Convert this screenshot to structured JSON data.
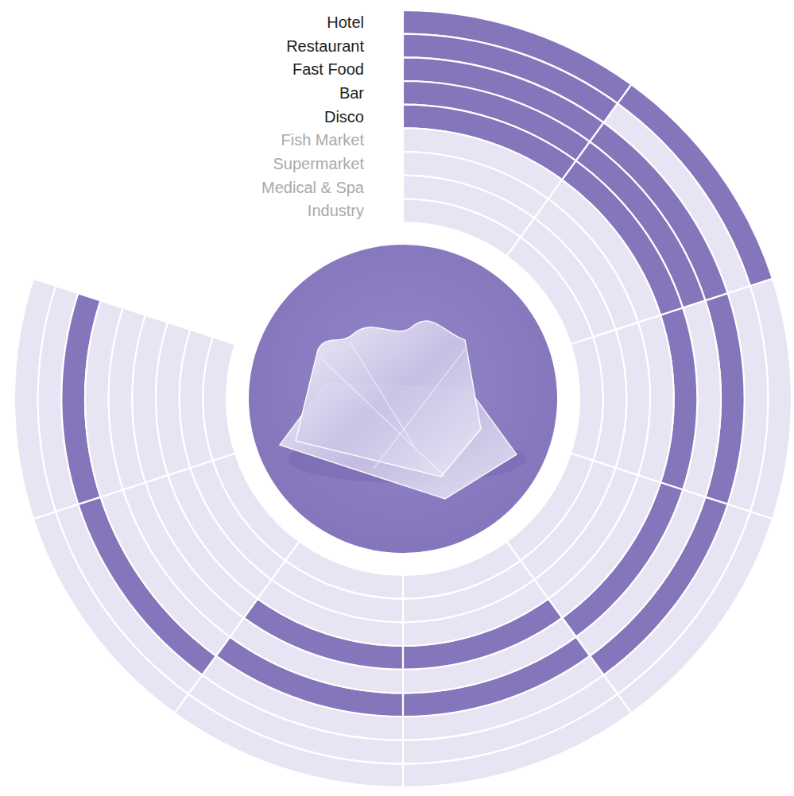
{
  "chart_data": {
    "type": "radial",
    "categories": [
      "Hotel",
      "Restaurant",
      "Fast Food",
      "Bar",
      "Disco",
      "Fish Market",
      "Supermarket",
      "Medical & Spa",
      "Industry"
    ],
    "values": [
      [
        1,
        1,
        0,
        0,
        0,
        0,
        0,
        0
      ],
      [
        1,
        0,
        0,
        0,
        0,
        0,
        0,
        0
      ],
      [
        1,
        1,
        1,
        1,
        0,
        0,
        1,
        1
      ],
      [
        1,
        1,
        0,
        0,
        1,
        1,
        0,
        0
      ],
      [
        1,
        1,
        1,
        1,
        0,
        0,
        0,
        0
      ],
      [
        0,
        0,
        0,
        0,
        1,
        1,
        0,
        0
      ],
      [
        0,
        0,
        0,
        0,
        0,
        0,
        0,
        0
      ],
      [
        0,
        0,
        0,
        0,
        0,
        0,
        0,
        0
      ],
      [
        0,
        0,
        0,
        0,
        0,
        0,
        0,
        0
      ]
    ],
    "colors": [
      "#e7e4f3",
      "#8576bc"
    ]
  }
}
